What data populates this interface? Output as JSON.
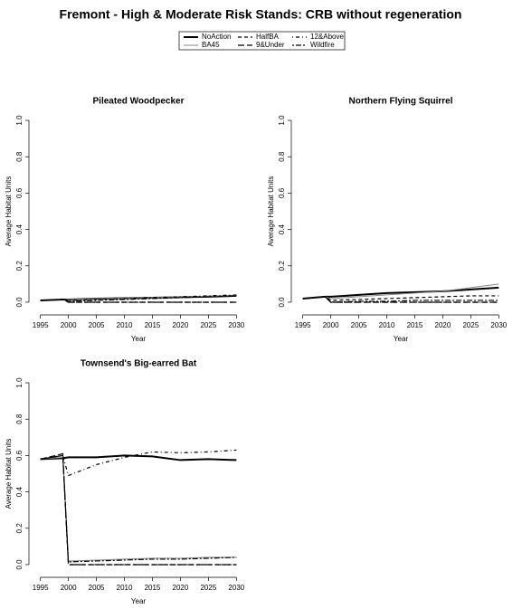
{
  "title": "Fremont  - High & Moderate Risk Stands: CRB without regeneration",
  "chart_data": [
    {
      "type": "line",
      "title": "Pileated Woodpecker",
      "x_label": "Year",
      "y_label": "Average Habitat Units",
      "x": [
        1995,
        1999,
        2000,
        2005,
        2010,
        2015,
        2020,
        2025,
        2030
      ],
      "xlim": [
        1993.6,
        2031.4
      ],
      "xticks": [
        1995,
        2000,
        2005,
        2010,
        2015,
        2020,
        2025,
        2030
      ],
      "ylim": [
        -0.04,
        1.04
      ],
      "yticks": [
        {
          "value": 0,
          "label": "0.0"
        },
        0.2,
        0.4,
        0.6,
        0.8,
        {
          "value": 1,
          "label": "1.0"
        }
      ],
      "series": [
        {
          "name": "NoAction",
          "color": "#000000",
          "style": "solid",
          "line_width": 2,
          "values": [
            0.01,
            0.015,
            0.015,
            0.02,
            0.022,
            0.025,
            0.028,
            0.03,
            0.035
          ]
        },
        {
          "name": "BA45",
          "color": "#888888",
          "style": "solid",
          "line_width": 1,
          "values": [
            0.01,
            0.015,
            0.015,
            0.02,
            0.023,
            0.026,
            0.03,
            0.033,
            0.038
          ]
        },
        {
          "name": "HalfBA",
          "color": "#000000",
          "style": "dashed",
          "line_width": 1.2,
          "values": [
            0.01,
            0.015,
            0,
            0,
            0,
            0,
            0,
            0,
            0
          ]
        },
        {
          "name": "9&Under",
          "color": "#000000",
          "style": "longdash",
          "line_width": 1.2,
          "values": [
            0.01,
            0.015,
            0,
            0,
            0,
            0,
            0,
            0,
            0
          ]
        },
        {
          "name": "12&Above",
          "color": "#000000",
          "style": "dotdash",
          "line_width": 1.2,
          "values": [
            0.01,
            0.015,
            0.01,
            0.015,
            0.02,
            0.025,
            0.03,
            0.035,
            0.04
          ]
        },
        {
          "name": "Wildfire",
          "color": "#000000",
          "style": "twodash",
          "line_width": 1.2,
          "values": [
            0.01,
            0.015,
            0.005,
            0.01,
            0.015,
            0.02,
            0.025,
            0.03,
            0.035
          ]
        }
      ]
    },
    {
      "type": "line",
      "title": "Northern Flying Squirrel",
      "x_label": "Year",
      "y_label": "Average Habitat Units",
      "x": [
        1995,
        1999,
        2000,
        2005,
        2010,
        2015,
        2020,
        2025,
        2030
      ],
      "xlim": [
        1993.6,
        2031.4
      ],
      "xticks": [
        1995,
        2000,
        2005,
        2010,
        2015,
        2020,
        2025,
        2030
      ],
      "ylim": [
        -0.04,
        1.04
      ],
      "yticks": [
        {
          "value": 0,
          "label": "0.0"
        },
        0.2,
        0.4,
        0.6,
        0.8,
        {
          "value": 1,
          "label": "1.0"
        }
      ],
      "series": [
        {
          "name": "NoAction",
          "color": "#000000",
          "style": "solid",
          "line_width": 2,
          "values": [
            0.02,
            0.03,
            0.03,
            0.04,
            0.05,
            0.055,
            0.06,
            0.07,
            0.08
          ]
        },
        {
          "name": "BA45",
          "color": "#888888",
          "style": "solid",
          "line_width": 1,
          "values": [
            0.02,
            0.03,
            0.02,
            0.03,
            0.04,
            0.05,
            0.06,
            0.08,
            0.1
          ]
        },
        {
          "name": "HalfBA",
          "color": "#000000",
          "style": "dashed",
          "line_width": 1.2,
          "values": [
            0.02,
            0.03,
            0.01,
            0.015,
            0.02,
            0.025,
            0.03,
            0.035,
            0.035
          ]
        },
        {
          "name": "9&Under",
          "color": "#000000",
          "style": "longdash",
          "line_width": 1.2,
          "values": [
            0.02,
            0.03,
            0,
            0,
            0,
            0,
            0,
            0,
            0
          ]
        },
        {
          "name": "12&Above",
          "color": "#000000",
          "style": "dotdash",
          "line_width": 1.2,
          "values": [
            0.02,
            0.03,
            0,
            0,
            0,
            0,
            0,
            0,
            0
          ]
        },
        {
          "name": "Wildfire",
          "color": "#000000",
          "style": "twodash",
          "line_width": 1.2,
          "values": [
            0.02,
            0.03,
            0,
            0.005,
            0.005,
            0.01,
            0.01,
            0.01,
            0.01
          ]
        }
      ]
    },
    {
      "type": "line",
      "title": "Townsend's Big-earred Bat",
      "x_label": "Year",
      "y_label": "Average Habitat Units",
      "x": [
        1995,
        1999,
        2000,
        2005,
        2010,
        2015,
        2020,
        2025,
        2030
      ],
      "xlim": [
        1993.6,
        2031.4
      ],
      "xticks": [
        1995,
        2000,
        2005,
        2010,
        2015,
        2020,
        2025,
        2030
      ],
      "ylim": [
        -0.04,
        1.04
      ],
      "yticks": [
        {
          "value": 0,
          "label": "0.0"
        },
        0.2,
        0.4,
        0.6,
        0.8,
        {
          "value": 1,
          "label": "1.0"
        }
      ],
      "series": [
        {
          "name": "NoAction",
          "color": "#000000",
          "style": "solid",
          "line_width": 2,
          "values": [
            0.58,
            0.585,
            0.59,
            0.59,
            0.6,
            0.595,
            0.575,
            0.58,
            0.575
          ]
        },
        {
          "name": "BA45",
          "color": "#888888",
          "style": "solid",
          "line_width": 1,
          "values": [
            0.58,
            0.59,
            0.02,
            0.025,
            0.03,
            0.035,
            0.035,
            0.04,
            0.04
          ]
        },
        {
          "name": "HalfBA",
          "color": "#000000",
          "style": "dashed",
          "line_width": 1.2,
          "values": [
            0.58,
            0.6,
            0,
            0,
            0,
            0,
            0,
            0,
            0
          ]
        },
        {
          "name": "9&Under",
          "color": "#000000",
          "style": "longdash",
          "line_width": 1.2,
          "values": [
            0.58,
            0.61,
            0,
            0,
            0,
            0,
            0,
            0,
            0
          ]
        },
        {
          "name": "12&Above",
          "color": "#000000",
          "style": "dotdash",
          "line_width": 1.2,
          "values": [
            0.58,
            0.6,
            0.49,
            0.55,
            0.59,
            0.62,
            0.615,
            0.62,
            0.63
          ]
        },
        {
          "name": "Wildfire",
          "color": "#000000",
          "style": "twodash",
          "line_width": 1.2,
          "values": [
            0.58,
            0.6,
            0.015,
            0.02,
            0.025,
            0.03,
            0.03,
            0.035,
            0.04
          ]
        }
      ]
    }
  ]
}
